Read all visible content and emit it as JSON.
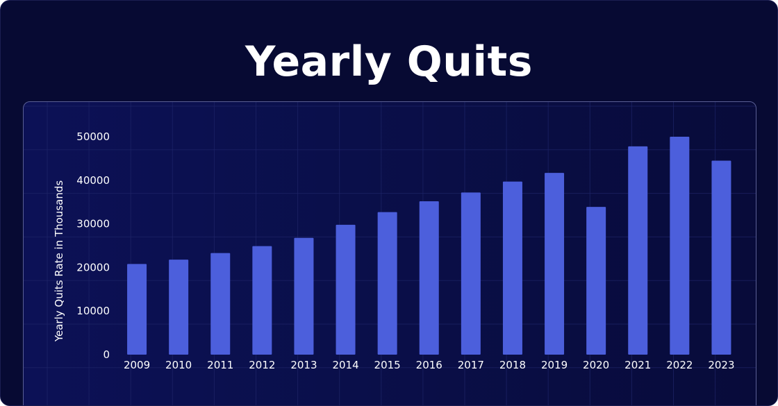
{
  "title": "Yearly Quits",
  "colors": {
    "background": "#070a33",
    "bar": "#4c5fdc",
    "grid": "#1f2568",
    "text": "#ffffff"
  },
  "chart_data": {
    "type": "bar",
    "categories": [
      "2009",
      "2010",
      "2011",
      "2012",
      "2013",
      "2014",
      "2015",
      "2016",
      "2017",
      "2018",
      "2019",
      "2020",
      "2021",
      "2022",
      "2023"
    ],
    "values": [
      20800,
      21800,
      23300,
      24900,
      26800,
      29800,
      32700,
      35200,
      37200,
      39700,
      41700,
      33900,
      47800,
      50000,
      44500
    ],
    "title": "Yearly Quits",
    "xlabel": "",
    "ylabel": "Yearly Quits Rate in Thousands",
    "ylim": [
      0,
      50000
    ],
    "yticks": [
      0,
      10000,
      20000,
      30000,
      40000,
      50000
    ],
    "grid": true,
    "legend": "none"
  }
}
